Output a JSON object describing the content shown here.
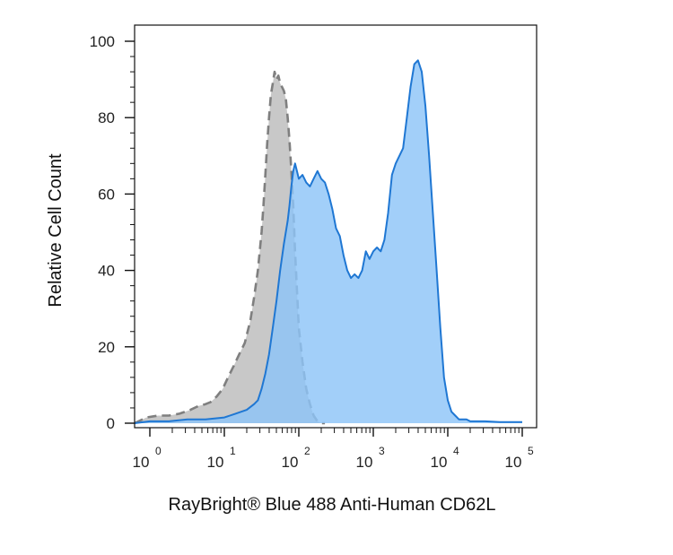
{
  "chart_data": {
    "type": "area",
    "title": "",
    "xlabel": "RayBright® Blue 488 Anti-Human CD62L",
    "ylabel": "Relative Cell Count",
    "x_scale": "log",
    "x_ticks": [
      {
        "value": 1,
        "base": "10",
        "exp": "0"
      },
      {
        "value": 10,
        "base": "10",
        "exp": "1"
      },
      {
        "value": 100,
        "base": "10",
        "exp": "2"
      },
      {
        "value": 1000,
        "base": "10",
        "exp": "3"
      },
      {
        "value": 10000,
        "base": "10",
        "exp": "4"
      },
      {
        "value": 100000,
        "base": "10",
        "exp": "5"
      }
    ],
    "y_ticks": [
      {
        "value": 0,
        "label": "0"
      },
      {
        "value": 20,
        "label": "20"
      },
      {
        "value": 40,
        "label": "40"
      },
      {
        "value": 60,
        "label": "60"
      },
      {
        "value": 80,
        "label": "80"
      },
      {
        "value": 100,
        "label": "100"
      }
    ],
    "ylim": [
      0,
      100
    ],
    "grid": false,
    "series": [
      {
        "role": "control",
        "style": "dashed-gray-fill",
        "fill": "#c8c8c8",
        "stroke": "#7f7f7f",
        "x": [
          0.6,
          0.9,
          1.3,
          1.8,
          2.5,
          3.5,
          4.5,
          5.6,
          6.5,
          7.9,
          9.5,
          11.2,
          13.4,
          15.8,
          18.8,
          22.4,
          25.1,
          28.2,
          31.6,
          33.5,
          35.5,
          37.6,
          39.8,
          42.2,
          44.7,
          47.3,
          50.1,
          53.1,
          56.2,
          59.6,
          63.1,
          66.8,
          70.8,
          75.0,
          79.4,
          84.1,
          89.1,
          94.4,
          100,
          112,
          126,
          141,
          158,
          178,
          200,
          224
        ],
        "y": [
          0,
          1.5,
          2,
          2,
          2.5,
          3.5,
          4.5,
          5,
          5.5,
          7,
          9,
          12,
          15,
          18,
          21,
          27,
          33,
          40,
          50,
          57,
          65,
          73,
          80,
          86,
          89,
          92,
          90,
          91,
          89,
          88,
          87,
          85,
          80,
          74,
          66,
          57,
          45,
          35,
          25,
          16,
          9,
          5,
          2,
          0.5,
          0,
          0
        ]
      },
      {
        "role": "stained",
        "style": "solid-blue-fill",
        "fill": "#8ec4f8",
        "stroke": "#1f77d3",
        "x": [
          0.6,
          1.0,
          1.8,
          3.2,
          5.6,
          10,
          14.1,
          20,
          25.1,
          28.2,
          31.6,
          35.5,
          39.8,
          44.7,
          50.1,
          56.2,
          63.1,
          70.8,
          75,
          79.4,
          84.1,
          89.1,
          94.4,
          100,
          112,
          126,
          141,
          158,
          178,
          200,
          224,
          251,
          282,
          316,
          355,
          398,
          447,
          501,
          562,
          631,
          708,
          794,
          891,
          1000,
          1120,
          1260,
          1410,
          1580,
          1780,
          2000,
          2240,
          2510,
          2820,
          3160,
          3550,
          3980,
          4470,
          5010,
          5620,
          6310,
          7080,
          7940,
          8910,
          10000,
          11200,
          12600,
          14100,
          15800,
          17800,
          20000,
          25100,
          31600,
          50100,
          79400,
          100000
        ],
        "y": [
          0,
          0.5,
          0.5,
          1,
          1,
          1.5,
          2.5,
          3.5,
          5,
          6,
          9,
          13,
          18,
          25,
          32,
          40,
          47,
          53,
          57,
          62,
          66,
          68,
          66,
          64,
          65,
          63,
          62,
          64,
          66,
          64,
          63,
          60,
          56,
          51,
          49,
          44,
          40,
          38,
          39,
          38,
          40,
          45,
          43,
          45,
          46,
          45,
          48,
          55,
          65,
          68,
          70,
          72,
          80,
          88,
          94,
          95,
          92,
          83,
          70,
          55,
          40,
          25,
          12,
          6,
          3,
          2,
          1,
          1,
          1,
          0.5,
          0.5,
          0.5,
          0.3,
          0.3,
          0.3
        ]
      }
    ]
  }
}
